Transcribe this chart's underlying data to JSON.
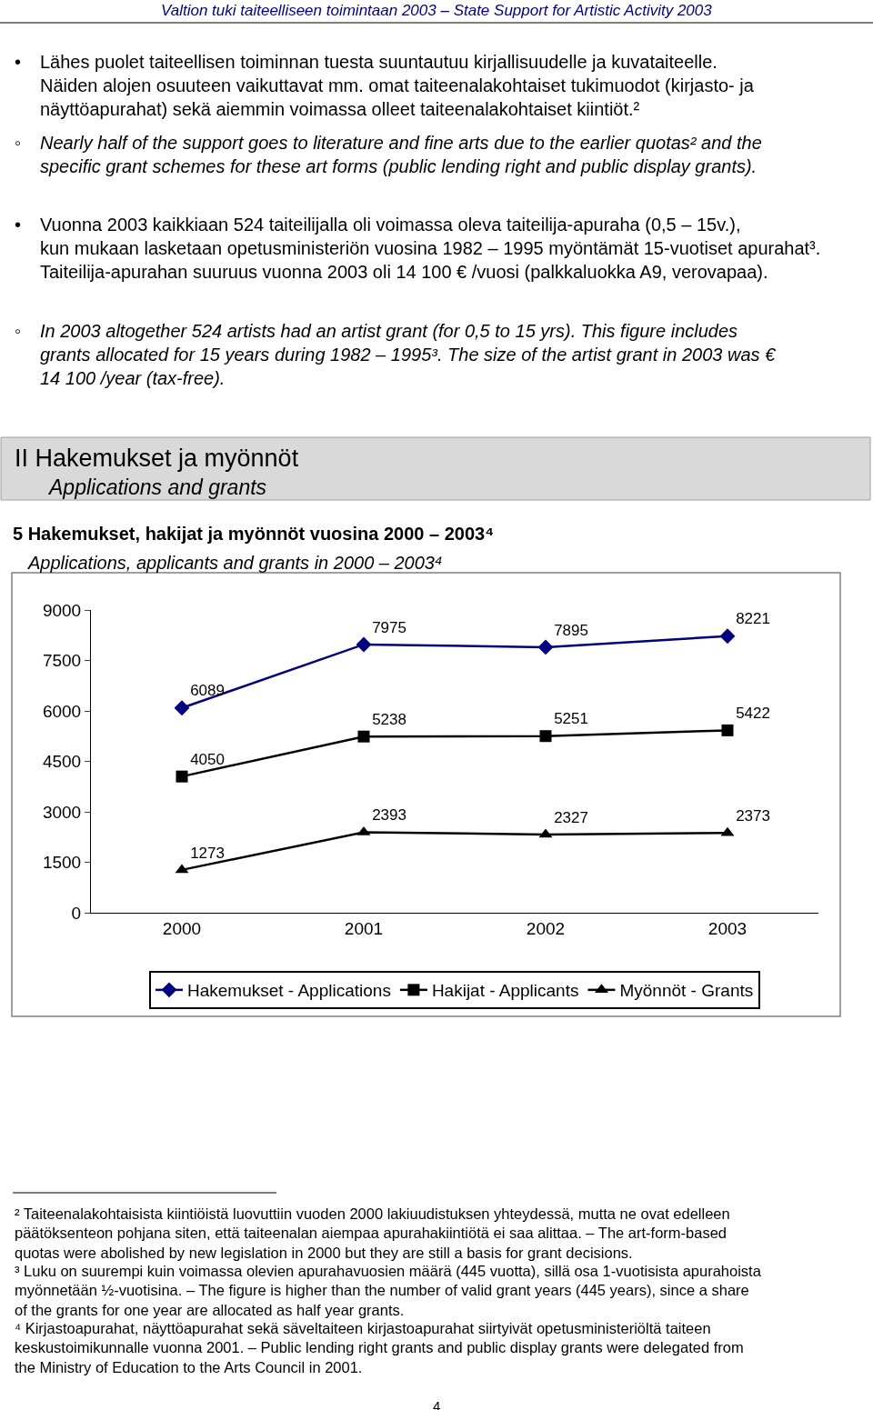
{
  "chart_data": {
    "type": "line",
    "title": "5 Hakemukset, hakijat ja myönnöt vuosina 2000 – 2003⁴",
    "subtitle": "Applications, applicants and grants in 2000 – 2003⁴",
    "categories": [
      "2000",
      "2001",
      "2002",
      "2003"
    ],
    "series": [
      {
        "name": "Hakemukset - Applications",
        "color": "#000080",
        "marker": "diamond",
        "values": [
          6089,
          7975,
          7895,
          8221
        ]
      },
      {
        "name": "Hakijat - Applicants",
        "color": "#000000",
        "marker": "square",
        "values": [
          4050,
          5238,
          5251,
          5422
        ]
      },
      {
        "name": "Myönnöt - Grants",
        "color": "#000000",
        "marker": "triangle",
        "values": [
          1273,
          2393,
          2327,
          2373
        ]
      }
    ],
    "ylim": [
      0,
      9000
    ],
    "yticks": [
      0,
      1500,
      3000,
      4500,
      6000,
      7500,
      9000
    ],
    "legend": "bottom",
    "data_labels": true,
    "line_style": "solid",
    "annotations": [
      "Valtion tuki taiteelliseen toimintaan 2003 – State Support for Artistic Activity 2003",
      "•",
      "◦",
      "•",
      "◦",
      "Lähes puolet taiteellisen toiminnan tuesta suuntautuu kirjallisuudelle ja kuvataiteelle. Näiden alojen osuuteen vaikuttavat mm. omat taiteenalakohtaiset tukimuodot (kirjasto- ja näyttöapurahat) sekä aiemmin voimassa olleet taiteenalakohtaiset kiintiöt.²",
      "Nearly half of the support goes to literature and fine arts due to the earlier quotas² and the specific grant schemes for these art forms (public lending right and public display grants).",
      "Vuonna 2003 kaikkiaan 524 taiteilijalla oli voimassa oleva taiteilija-apuraha (0,5 – 15v.), kun mukaan lasketaan opetusministeriön vuosina 1982 – 1995 myöntämät 15-vuotiset apurahat³. Taiteilija-apurahan suuruus vuonna 2003 oli 14 100 € /vuosi (palkkaluokka A9, verovapaa).",
      "In 2003 altogether 524 artists had an artist grant (for 0,5 to 15 yrs). This figure includes grants allocated for 15 years during 1982 – 1995³. The size of the artist grant in 2003 was € 14 100 /year (tax-free).",
      "II Hakemukset ja myönnöt",
      "Applications and grants",
      "² Taiteenalakohtaisista kiintiöistä luovuttiin vuoden 2000 lakiuudistuksen yhteydessä, mutta ne ovat edelleen päätöksenteon pohjana siten, että taiteenalan aiempaa apurahakiintiötä ei saa alittaa. – The art-form-based quotas were abolished by new legislation in 2000 but they are still a basis for grant decisions.",
      "³ Luku on suurempi kuin voimassa olevien apurahavuosien määrä (445 vuotta), sillä osa 1-vuotisista apurahoista myönnetään ½-vuotisina. – The figure is higher than the number of valid grant years (445 years), since a share of the grants for one year are allocated as half year grants.",
      "⁴ Kirjastoapurahat, näyttöapurahat sekä säveltaiteen kirjastoapurahat siirtyivät opetusministeriöltä taiteen keskustoimikunnalle vuonna 2001. – Public lending right grants and public display grants were delegated from the Ministry of Education to the Arts Council in 2001.",
      "4"
    ]
  }
}
